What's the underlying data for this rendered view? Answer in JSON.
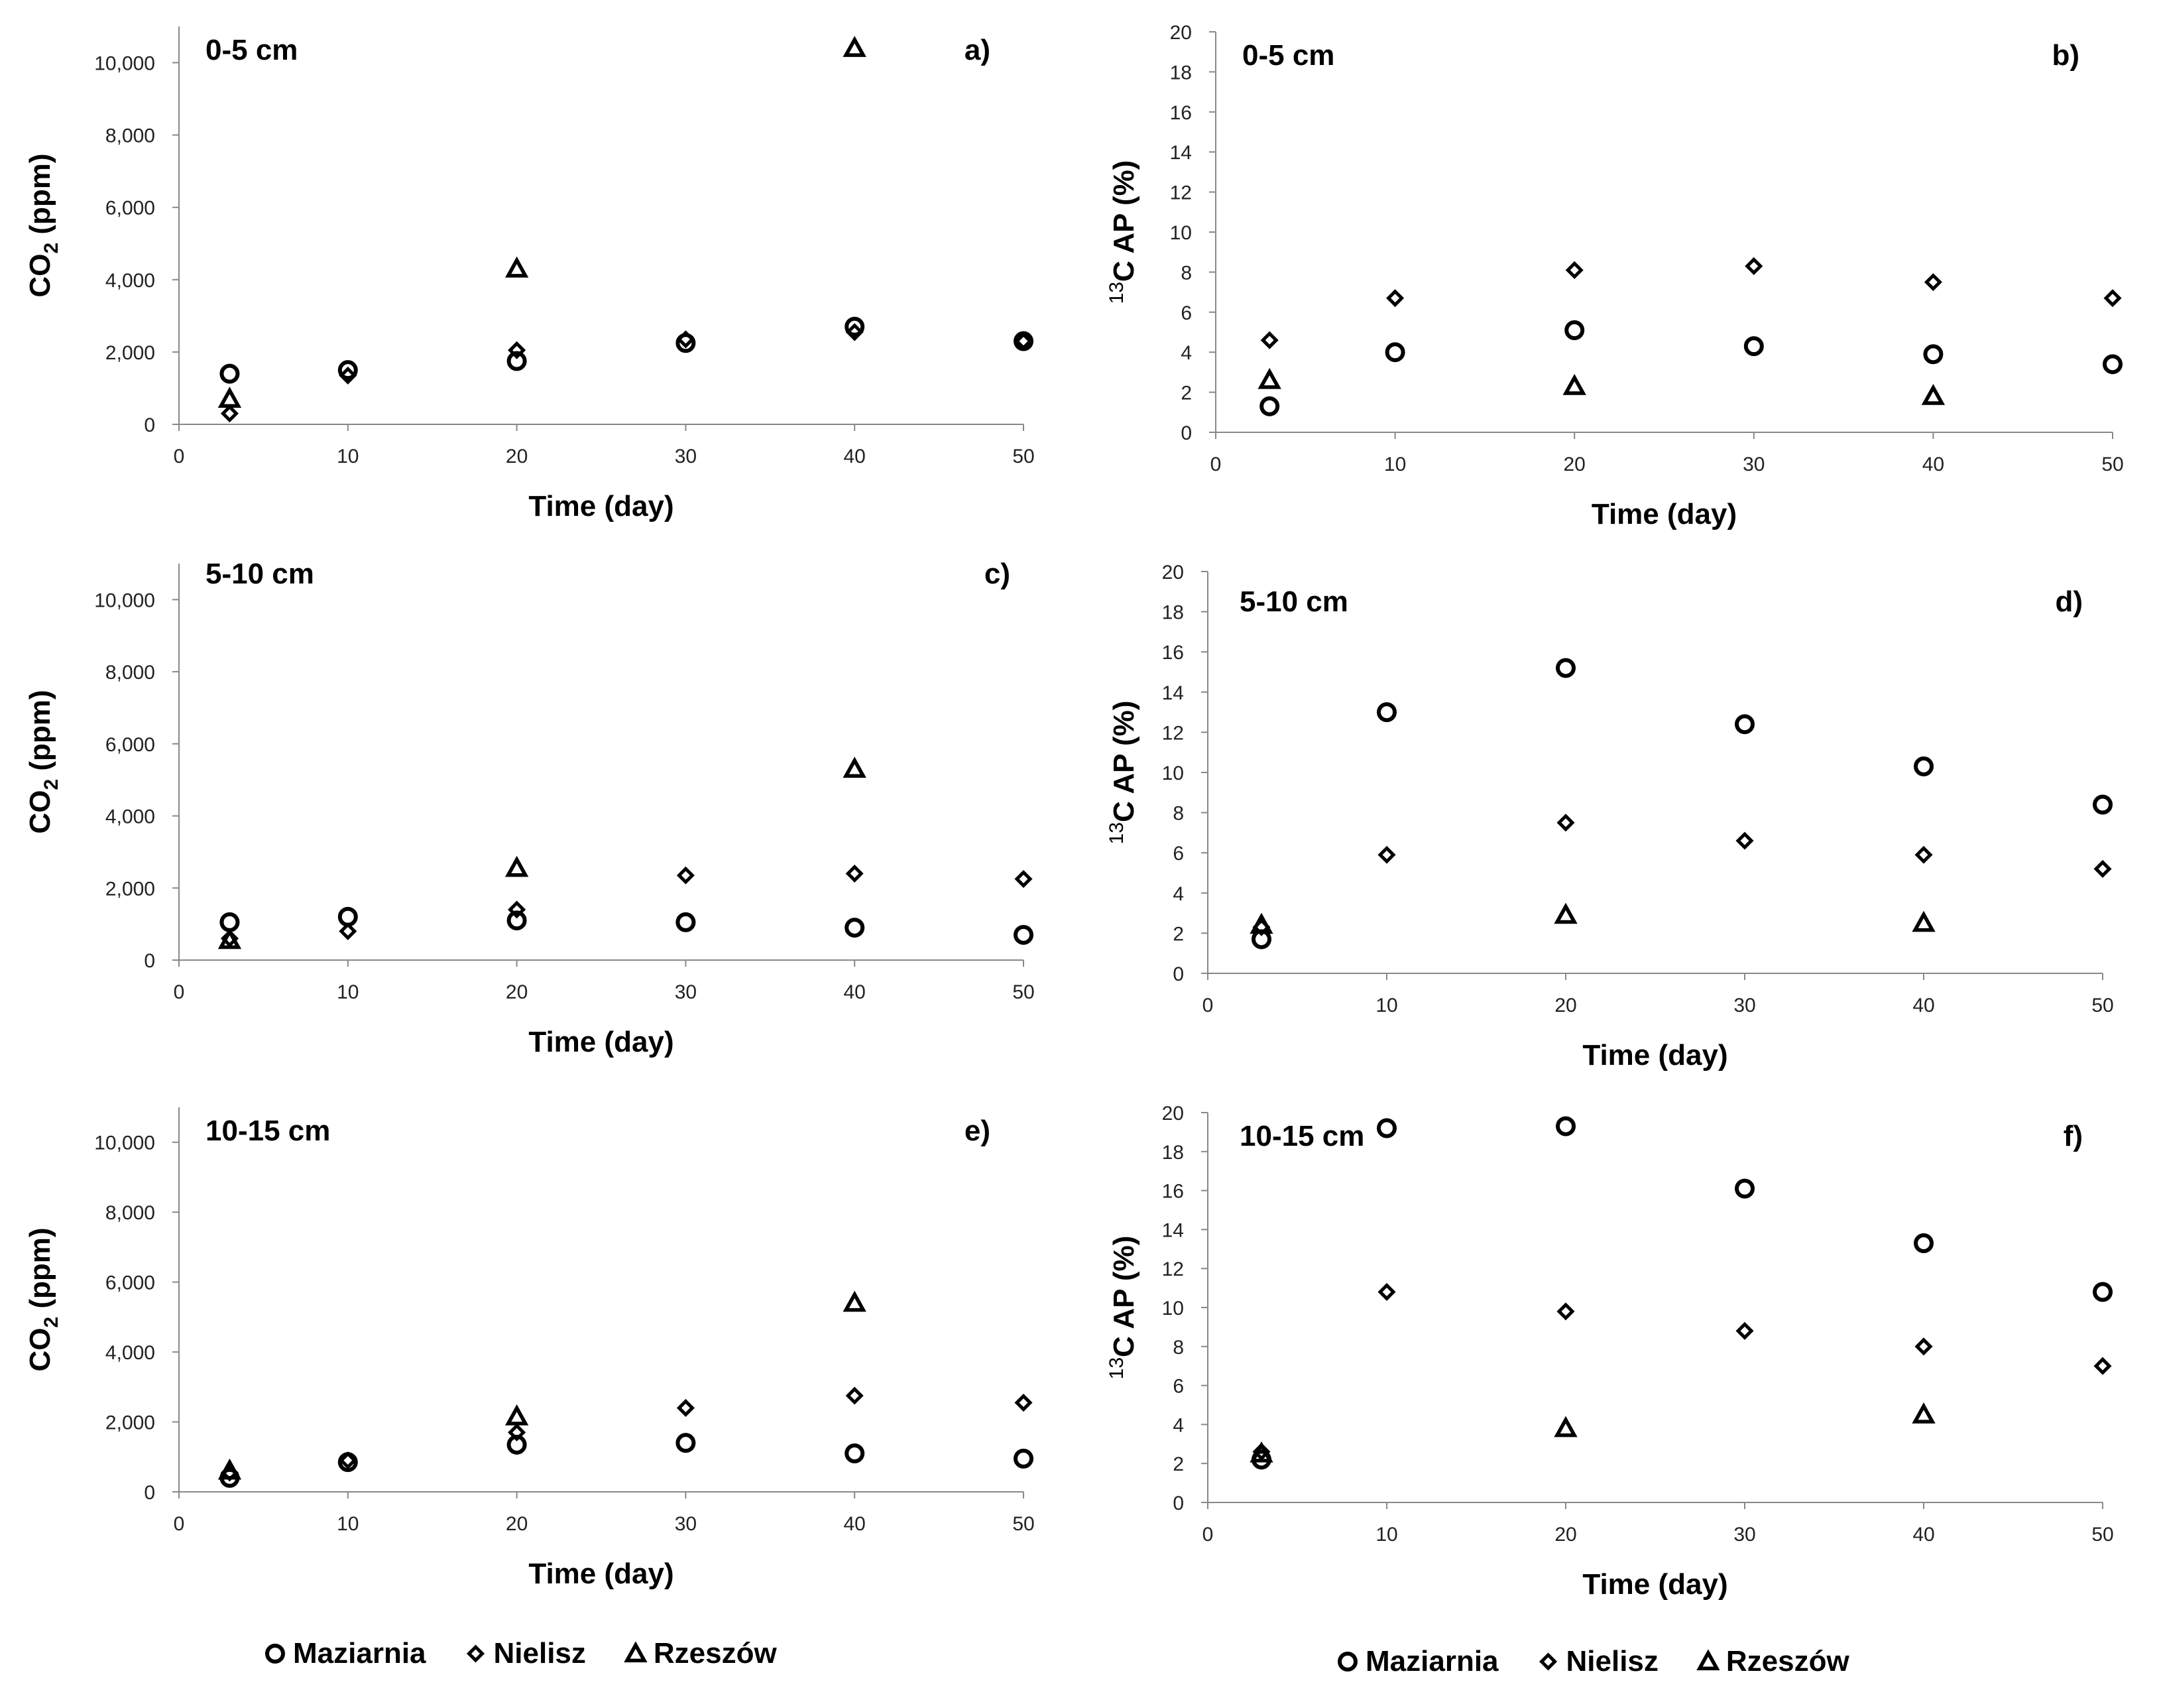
{
  "figure": {
    "legends": [
      {
        "entries": [
          {
            "name": "Maziarnia",
            "marker": "circle"
          },
          {
            "name": "Nielisz",
            "marker": "diamond"
          },
          {
            "name": "Rzeszów",
            "marker": "triangle"
          }
        ]
      },
      {
        "entries": [
          {
            "name": "Maziarnia",
            "marker": "circle"
          },
          {
            "name": "Nielisz",
            "marker": "diamond"
          },
          {
            "name": "Rzeszów",
            "marker": "triangle"
          }
        ]
      }
    ]
  },
  "chart_data": [
    {
      "type": "scatter",
      "panel": "a)",
      "depth": "0-5 cm",
      "xlabel": "Time (day)",
      "ylabel": "CO2 (ppm)",
      "xlim": [
        0,
        50
      ],
      "ylim": [
        0,
        11000
      ],
      "xticks": [
        "0",
        "10",
        "20",
        "30",
        "40",
        "50"
      ],
      "yticks": [
        "0",
        "2,000",
        "4,000",
        "6,000",
        "8,000",
        "10,000"
      ],
      "series": [
        {
          "name": "Maziarnia",
          "marker": "circle",
          "points": [
            [
              3,
              1400
            ],
            [
              10,
              1500
            ],
            [
              20,
              1750
            ],
            [
              30,
              2250
            ],
            [
              40,
              2700
            ],
            [
              50,
              2300
            ]
          ]
        },
        {
          "name": "Nielisz",
          "marker": "diamond",
          "points": [
            [
              3,
              300
            ],
            [
              10,
              1350
            ],
            [
              20,
              2050
            ],
            [
              30,
              2350
            ],
            [
              40,
              2550
            ],
            [
              50,
              2300
            ]
          ]
        },
        {
          "name": "Rzeszów",
          "marker": "triangle",
          "points": [
            [
              3,
              700
            ],
            [
              20,
              4300
            ],
            [
              40,
              10400
            ]
          ]
        }
      ]
    },
    {
      "type": "scatter",
      "panel": "b)",
      "depth": "0-5 cm",
      "xlabel": "Time (day)",
      "ylabel": "13C AP (%)",
      "xlim": [
        0,
        50
      ],
      "ylim": [
        0,
        20
      ],
      "xticks": [
        "0",
        "10",
        "20",
        "30",
        "40",
        "50"
      ],
      "yticks": [
        "0",
        "2",
        "4",
        "6",
        "8",
        "10",
        "12",
        "14",
        "16",
        "18",
        "20"
      ],
      "series": [
        {
          "name": "Maziarnia",
          "marker": "circle",
          "points": [
            [
              3,
              1.3
            ],
            [
              10,
              4.0
            ],
            [
              20,
              5.1
            ],
            [
              30,
              4.3
            ],
            [
              40,
              3.9
            ],
            [
              50,
              3.4
            ]
          ]
        },
        {
          "name": "Nielisz",
          "marker": "diamond",
          "points": [
            [
              3,
              4.6
            ],
            [
              10,
              6.7
            ],
            [
              20,
              8.1
            ],
            [
              30,
              8.3
            ],
            [
              40,
              7.5
            ],
            [
              50,
              6.7
            ]
          ]
        },
        {
          "name": "Rzeszów",
          "marker": "triangle",
          "points": [
            [
              3,
              2.6
            ],
            [
              20,
              2.3
            ],
            [
              40,
              1.8
            ]
          ]
        }
      ]
    },
    {
      "type": "scatter",
      "panel": "c)",
      "depth": "5-10 cm",
      "xlabel": "Time (day)",
      "ylabel": "CO2 (ppm)",
      "xlim": [
        0,
        50
      ],
      "ylim": [
        0,
        11000
      ],
      "xticks": [
        "0",
        "10",
        "20",
        "30",
        "40",
        "50"
      ],
      "yticks": [
        "0",
        "2,000",
        "4,000",
        "6,000",
        "8,000",
        "10,000"
      ],
      "series": [
        {
          "name": "Maziarnia",
          "marker": "circle",
          "points": [
            [
              3,
              1050
            ],
            [
              10,
              1200
            ],
            [
              20,
              1100
            ],
            [
              30,
              1050
            ],
            [
              40,
              900
            ],
            [
              50,
              700
            ]
          ]
        },
        {
          "name": "Nielisz",
          "marker": "diamond",
          "points": [
            [
              3,
              600
            ],
            [
              10,
              800
            ],
            [
              20,
              1400
            ],
            [
              30,
              2350
            ],
            [
              40,
              2400
            ],
            [
              50,
              2250
            ]
          ]
        },
        {
          "name": "Rzeszów",
          "marker": "triangle",
          "points": [
            [
              3,
              550
            ],
            [
              20,
              2550
            ],
            [
              40,
              5300
            ]
          ]
        }
      ]
    },
    {
      "type": "scatter",
      "panel": "d)",
      "depth": "5-10 cm",
      "xlabel": "Time (day)",
      "ylabel": "13C AP (%)",
      "xlim": [
        0,
        50
      ],
      "ylim": [
        0,
        20
      ],
      "xticks": [
        "0",
        "10",
        "20",
        "30",
        "40",
        "50"
      ],
      "yticks": [
        "0",
        "2",
        "4",
        "6",
        "8",
        "10",
        "12",
        "14",
        "16",
        "18",
        "20"
      ],
      "series": [
        {
          "name": "Maziarnia",
          "marker": "circle",
          "points": [
            [
              3,
              1.7
            ],
            [
              10,
              13.0
            ],
            [
              20,
              15.2
            ],
            [
              30,
              12.4
            ],
            [
              40,
              10.3
            ],
            [
              50,
              8.4
            ]
          ]
        },
        {
          "name": "Nielisz",
          "marker": "diamond",
          "points": [
            [
              3,
              2.3
            ],
            [
              10,
              5.9
            ],
            [
              20,
              7.5
            ],
            [
              30,
              6.6
            ],
            [
              40,
              5.9
            ],
            [
              50,
              5.2
            ]
          ]
        },
        {
          "name": "Rzeszów",
          "marker": "triangle",
          "points": [
            [
              3,
              2.4
            ],
            [
              20,
              2.9
            ],
            [
              40,
              2.5
            ]
          ]
        }
      ]
    },
    {
      "type": "scatter",
      "panel": "e)",
      "depth": "10-15 cm",
      "xlabel": "Time (day)",
      "ylabel": "CO2 (ppm)",
      "xlim": [
        0,
        50
      ],
      "ylim": [
        0,
        11000
      ],
      "xticks": [
        "0",
        "10",
        "20",
        "30",
        "40",
        "50"
      ],
      "yticks": [
        "0",
        "2,000",
        "4,000",
        "6,000",
        "8,000",
        "10,000"
      ],
      "series": [
        {
          "name": "Maziarnia",
          "marker": "circle",
          "points": [
            [
              3,
              400
            ],
            [
              10,
              850
            ],
            [
              20,
              1350
            ],
            [
              30,
              1400
            ],
            [
              40,
              1100
            ],
            [
              50,
              950
            ]
          ]
        },
        {
          "name": "Nielisz",
          "marker": "diamond",
          "points": [
            [
              3,
              550
            ],
            [
              10,
              900
            ],
            [
              20,
              1700
            ],
            [
              30,
              2400
            ],
            [
              40,
              2750
            ],
            [
              50,
              2550
            ]
          ]
        },
        {
          "name": "Rzeszów",
          "marker": "triangle",
          "points": [
            [
              3,
              600
            ],
            [
              20,
              2150
            ],
            [
              40,
              5400
            ]
          ]
        }
      ]
    },
    {
      "type": "scatter",
      "panel": "f)",
      "depth": "10-15 cm",
      "xlabel": "Time (day)",
      "ylabel": "13C AP (%)",
      "xlim": [
        0,
        50
      ],
      "ylim": [
        0,
        20
      ],
      "xticks": [
        "0",
        "10",
        "20",
        "30",
        "40",
        "50"
      ],
      "yticks": [
        "0",
        "2",
        "4",
        "6",
        "8",
        "10",
        "12",
        "14",
        "16",
        "18",
        "20"
      ],
      "series": [
        {
          "name": "Maziarnia",
          "marker": "circle",
          "points": [
            [
              3,
              2.2
            ],
            [
              10,
              19.2
            ],
            [
              20,
              19.3
            ],
            [
              30,
              16.1
            ],
            [
              40,
              13.3
            ],
            [
              50,
              10.8
            ]
          ]
        },
        {
          "name": "Nielisz",
          "marker": "diamond",
          "points": [
            [
              3,
              2.6
            ],
            [
              10,
              10.8
            ],
            [
              20,
              9.8
            ],
            [
              30,
              8.8
            ],
            [
              40,
              8.0
            ],
            [
              50,
              7.0
            ]
          ]
        },
        {
          "name": "Rzeszów",
          "marker": "triangle",
          "points": [
            [
              3,
              2.5
            ],
            [
              20,
              3.8
            ],
            [
              40,
              4.5
            ]
          ]
        }
      ]
    }
  ]
}
